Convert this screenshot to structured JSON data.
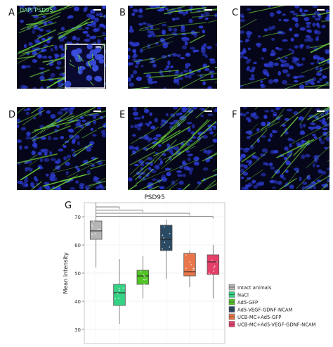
{
  "figure": {
    "panel_letters": [
      "A",
      "B",
      "C",
      "D",
      "E",
      "F",
      "G"
    ],
    "panel_a_caption": "DAPI PSD95"
  },
  "colors": {
    "nuclei": "#2a39c9",
    "fibers": "#6bd43a",
    "background": "#06061a"
  },
  "chart_data": {
    "type": "box",
    "title": "PSD95",
    "xlabel": "",
    "ylabel": "Mean intensity",
    "ylim": [
      25,
      75
    ],
    "yticks": [
      30,
      40,
      50,
      60,
      70
    ],
    "grid": true,
    "legend_position": "right",
    "series": [
      {
        "name": "Intact animals",
        "color": "#b5b5b5",
        "min": 52,
        "q1": 62,
        "median": 65,
        "q3": 68.5,
        "max": 75
      },
      {
        "name": "NaCl",
        "color": "#35d184",
        "min": 32,
        "q1": 38.5,
        "median": 43,
        "q3": 46,
        "max": 55
      },
      {
        "name": "Ad5-GFP",
        "color": "#52c426",
        "min": 41,
        "q1": 46,
        "median": 49,
        "q3": 51,
        "max": 56
      },
      {
        "name": "Ad5-VEGF-GDNF-NCAM",
        "color": "#2b4a63",
        "min": 48,
        "q1": 58,
        "median": 62,
        "q3": 67,
        "max": 69
      },
      {
        "name": "UCB-MC+Ad5-GFP",
        "color": "#e8764a",
        "min": 45,
        "q1": 49,
        "median": 50.5,
        "q3": 57,
        "max": 58
      },
      {
        "name": "UCB-MC+Ad5-VEGF-GDNF-NCAM",
        "color": "#e4406a",
        "min": 41,
        "q1": 49.5,
        "median": 54,
        "q3": 56.5,
        "max": 60
      }
    ],
    "significance_brackets": [
      {
        "from": 0,
        "to": 1
      },
      {
        "from": 0,
        "to": 2
      },
      {
        "from": 0,
        "to": 4
      },
      {
        "from": 0,
        "to": 5
      }
    ]
  }
}
